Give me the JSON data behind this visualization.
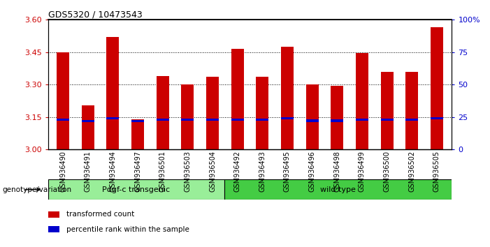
{
  "title": "GDS5320 / 10473543",
  "categories": [
    "GSM936490",
    "GSM936491",
    "GSM936494",
    "GSM936497",
    "GSM936501",
    "GSM936503",
    "GSM936504",
    "GSM936492",
    "GSM936493",
    "GSM936495",
    "GSM936496",
    "GSM936498",
    "GSM936499",
    "GSM936500",
    "GSM936502",
    "GSM936505"
  ],
  "transformed_count": [
    3.45,
    3.205,
    3.52,
    3.14,
    3.34,
    3.3,
    3.335,
    3.465,
    3.335,
    3.475,
    3.3,
    3.295,
    3.445,
    3.36,
    3.36,
    3.565
  ],
  "percentile_y": [
    3.132,
    3.125,
    3.138,
    3.126,
    3.133,
    3.133,
    3.133,
    3.133,
    3.133,
    3.138,
    3.128,
    3.128,
    3.133,
    3.133,
    3.133,
    3.138
  ],
  "bar_bottom": 3.0,
  "bar_color": "#cc0000",
  "blue_color": "#0000cc",
  "ylim_left": [
    3.0,
    3.6
  ],
  "ylim_right": [
    0,
    100
  ],
  "yticks_left": [
    3.0,
    3.15,
    3.3,
    3.45,
    3.6
  ],
  "yticks_right": [
    0,
    25,
    50,
    75,
    100
  ],
  "ytick_labels_right": [
    "0",
    "25",
    "50",
    "75",
    "100%"
  ],
  "grid_values": [
    3.15,
    3.3,
    3.45
  ],
  "group1_label": "Pdgf-c transgenic",
  "group2_label": "wild type",
  "group1_count": 7,
  "group2_count": 9,
  "genotype_label": "genotype/variation",
  "legend1": "transformed count",
  "legend2": "percentile rank within the sample",
  "group1_color": "#99ee99",
  "group2_color": "#44cc44",
  "bar_width": 0.5,
  "tick_label_fontsize": 7,
  "left_tick_color": "#cc0000",
  "right_tick_color": "#0000cc",
  "xtick_bg_color": "#cccccc",
  "xtick_edge_color": "#888888"
}
